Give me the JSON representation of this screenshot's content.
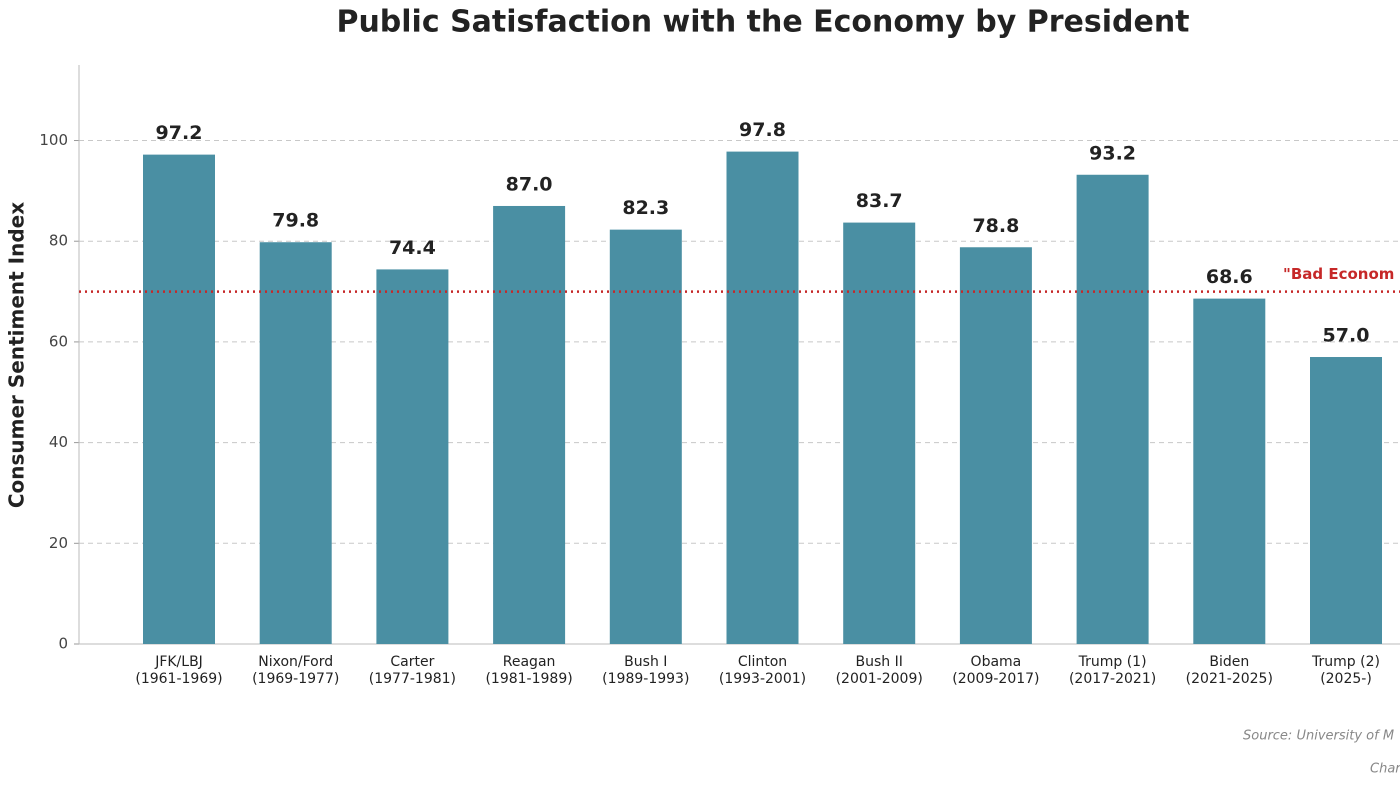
{
  "chart_data": {
    "type": "bar",
    "title": "Public Satisfaction with the Economy by President",
    "ylabel": "Consumer Sentiment Index",
    "categories": [
      "JFK/LBJ\n(1961-1969)",
      "Nixon/Ford\n(1969-1977)",
      "Carter\n(1977-1981)",
      "Reagan\n(1981-1989)",
      "Bush I\n(1989-1993)",
      "Clinton\n(1993-2001)",
      "Bush II\n(2001-2009)",
      "Obama\n(2009-2017)",
      "Trump (1)\n(2017-2021)",
      "Biden\n(2021-2025)",
      "Trump (2)\n(2025-)"
    ],
    "values": [
      97.2,
      79.8,
      74.4,
      87.0,
      82.3,
      97.8,
      83.7,
      78.8,
      93.2,
      68.6,
      57.0
    ],
    "value_labels": [
      "97.2",
      "79.8",
      "74.4",
      "87.0",
      "82.3",
      "97.8",
      "83.7",
      "78.8",
      "93.2",
      "68.6",
      "57.0"
    ],
    "color": "#4a8fa3",
    "ylim": [
      0,
      115
    ],
    "yticks": [
      0,
      20,
      40,
      60,
      80,
      100
    ],
    "grid": true,
    "reference_line": {
      "value": 70,
      "label": "\"Bad Econom",
      "color": "#c62828"
    },
    "source": "Source: University of M",
    "credit": "Char"
  }
}
